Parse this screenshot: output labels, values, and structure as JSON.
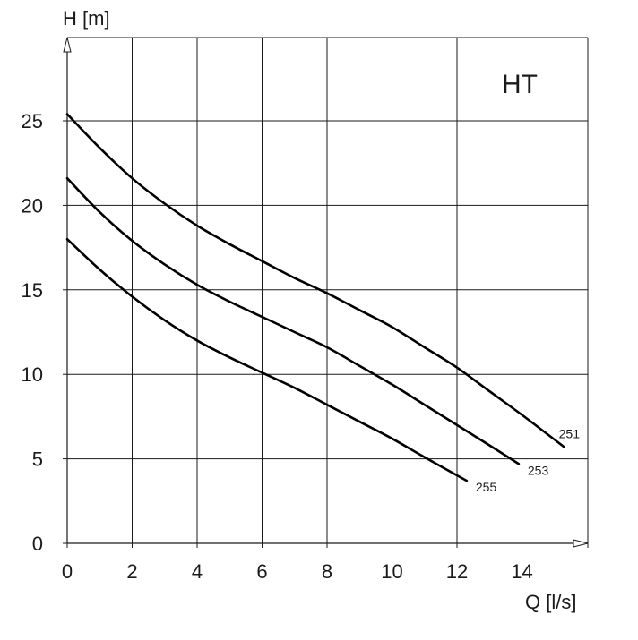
{
  "chart_data": {
    "type": "line",
    "title": "HT",
    "xlabel": "Q [l/s]",
    "ylabel": "H [m]",
    "xlim": [
      0,
      16
    ],
    "ylim": [
      0,
      25
    ],
    "xticks": [
      0,
      2,
      4,
      6,
      8,
      10,
      12,
      14
    ],
    "yticks": [
      0,
      5,
      10,
      15,
      20,
      25
    ],
    "grid": true,
    "series": [
      {
        "name": "251",
        "x": [
          0,
          1,
          2,
          3,
          4,
          5,
          6,
          7,
          8,
          9,
          10,
          11,
          12,
          13,
          14,
          15.3
        ],
        "y": [
          25.4,
          23.4,
          21.6,
          20.1,
          18.8,
          17.7,
          16.7,
          15.7,
          14.8,
          13.8,
          12.8,
          11.6,
          10.4,
          9.0,
          7.6,
          5.7
        ]
      },
      {
        "name": "253",
        "x": [
          0,
          1,
          2,
          3,
          4,
          5,
          6,
          7,
          8,
          9,
          10,
          11,
          12,
          13,
          13.9
        ],
        "y": [
          21.6,
          19.6,
          17.9,
          16.5,
          15.3,
          14.3,
          13.4,
          12.5,
          11.6,
          10.5,
          9.4,
          8.2,
          7.0,
          5.8,
          4.7
        ]
      },
      {
        "name": "255",
        "x": [
          0,
          1,
          2,
          3,
          4,
          5,
          6,
          7,
          8,
          9,
          10,
          11,
          12.3
        ],
        "y": [
          18.0,
          16.2,
          14.6,
          13.2,
          12.0,
          11.0,
          10.1,
          9.2,
          8.2,
          7.2,
          6.2,
          5.1,
          3.7
        ]
      }
    ]
  }
}
